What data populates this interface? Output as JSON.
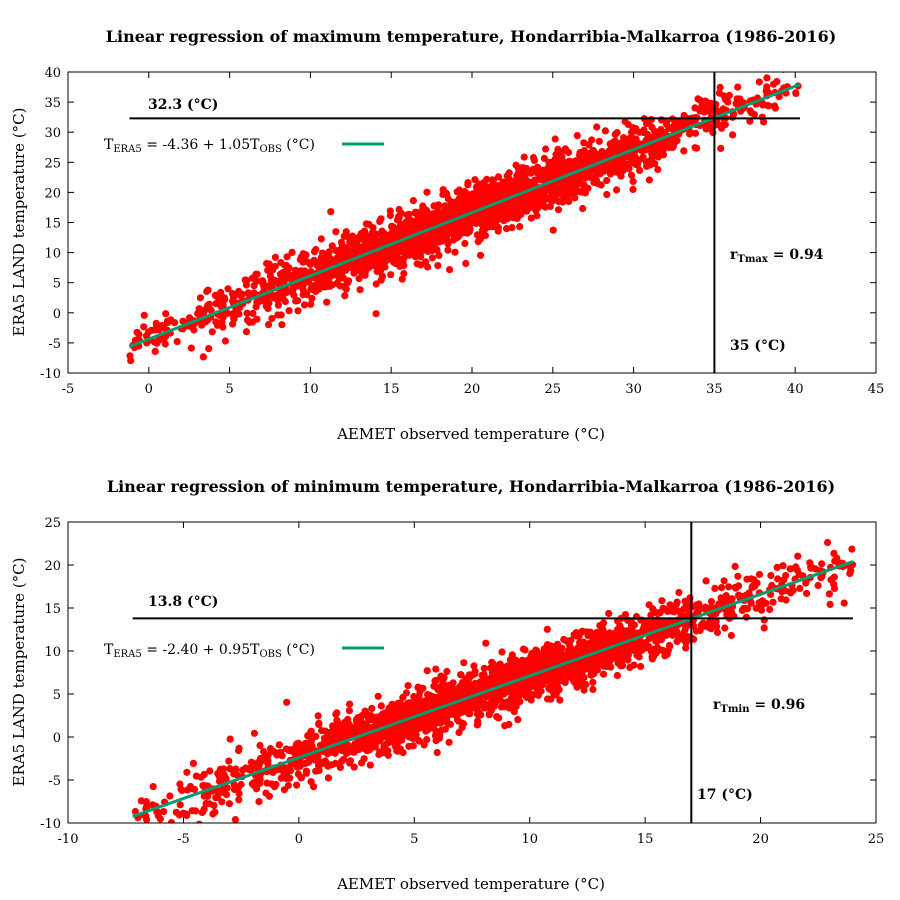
{
  "chart_data": [
    {
      "type": "scatter",
      "title": "Linear regression of maximum temperature, Hondarribia-Malkarroa (1986-2016)",
      "xlabel": "AEMET observed temperature (°C)",
      "ylabel": "ERA5 LAND temperature (°C)",
      "xlim": [
        -5,
        45
      ],
      "ylim": [
        -10,
        40
      ],
      "xticks": [
        "-5",
        "0",
        "5",
        "10",
        "15",
        "20",
        "25",
        "30",
        "35",
        "40",
        "45"
      ],
      "yticks": [
        "-10",
        "-5",
        "0",
        "5",
        "10",
        "15",
        "20",
        "25",
        "30",
        "35",
        "40"
      ],
      "point_color": "#ff0000",
      "fit_color": "#009e73",
      "grid": false,
      "regression": {
        "intercept": -4.36,
        "slope": 1.05,
        "x_range": [
          -1.2,
          40.3
        ]
      },
      "legend": {
        "text_main": "T",
        "sub_main": "ERA5",
        "text_eq": " = -4.36 + 1.05T",
        "sub_obs": "OBS",
        "text_unit": " (°C)",
        "placement": "top-left"
      },
      "hline": {
        "y": 32.3,
        "label": "32.3 (°C)",
        "x_range": [
          -1.2,
          40.3
        ]
      },
      "vline": {
        "x": 35,
        "label": "35 (°C)"
      },
      "correlation": {
        "prefix": "r",
        "sub": "Tmax",
        "suffix": " = 0.94"
      },
      "scatter_generator": {
        "x_range": [
          -1.2,
          40.3
        ],
        "noise": 2.3,
        "count": 2400
      }
    },
    {
      "type": "scatter",
      "title": "Linear regression of minimum temperature, Hondarribia-Malkarroa (1986-2016)",
      "xlabel": "AEMET observed temperature (°C)",
      "ylabel": "ERA5 LAND temperature (°C)",
      "xlim": [
        -10,
        25
      ],
      "ylim": [
        -10,
        25
      ],
      "xticks": [
        "-10",
        "-5",
        "0",
        "5",
        "10",
        "15",
        "20",
        "25"
      ],
      "yticks": [
        "-10",
        "-5",
        "0",
        "5",
        "10",
        "15",
        "20",
        "25"
      ],
      "point_color": "#ff0000",
      "fit_color": "#009e73",
      "grid": false,
      "regression": {
        "intercept": -2.4,
        "slope": 0.95,
        "x_range": [
          -7.2,
          24
        ]
      },
      "legend": {
        "text_main": "T",
        "sub_main": "ERA5",
        "text_eq": " = -2.40 + 0.95T",
        "sub_obs": "OBS",
        "text_unit": " (°C)",
        "placement": "top-left"
      },
      "hline": {
        "y": 13.8,
        "label": "13.8 (°C)",
        "x_range": [
          -7.2,
          24
        ]
      },
      "vline": {
        "x": 17,
        "label": "17 (°C)"
      },
      "correlation": {
        "prefix": "r",
        "sub": "Tmin",
        "suffix": " = 0.96"
      },
      "scatter_generator": {
        "x_range": [
          -7.2,
          24
        ],
        "noise": 1.6,
        "count": 2400
      }
    }
  ]
}
